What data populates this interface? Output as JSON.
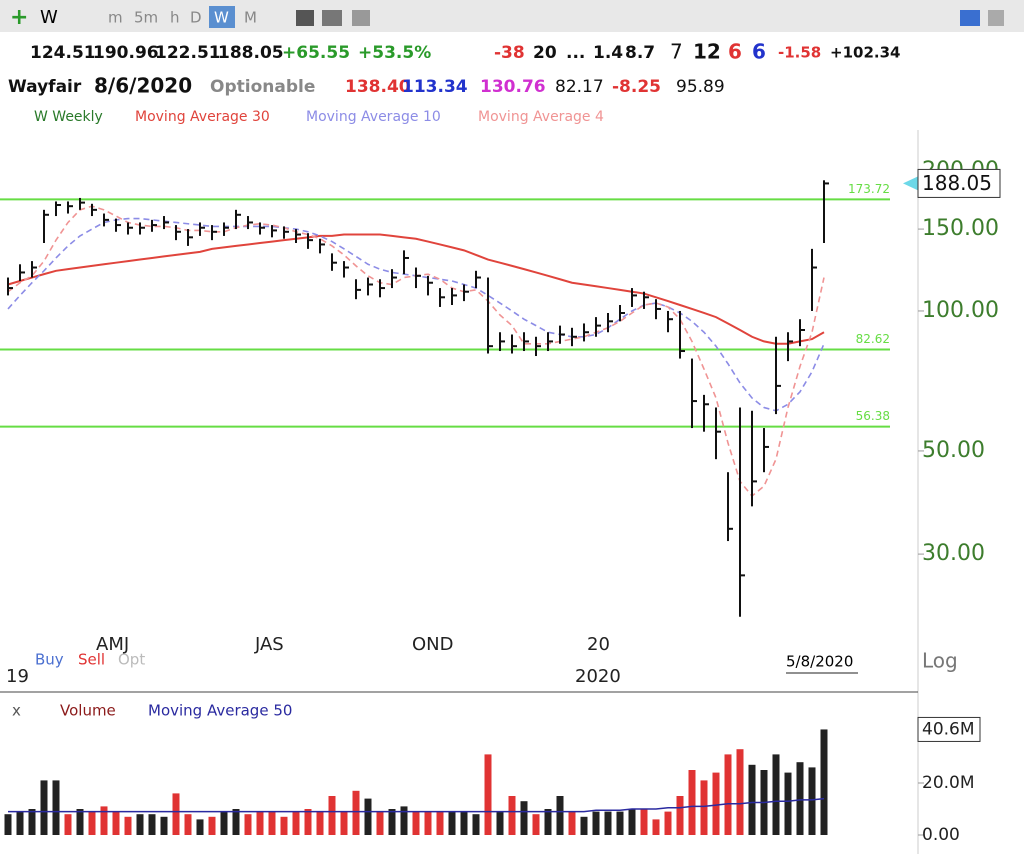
{
  "toolbar": {
    "symbol": "W",
    "intervals": [
      "m",
      "5m",
      "h",
      "D",
      "W",
      "M"
    ]
  },
  "quote": {
    "line1": [
      "124.51",
      "190.96",
      "122.51",
      "188.05",
      "+65.55",
      "+53.5%",
      "-38",
      "20",
      "...",
      "1.4",
      "8.7",
      "7",
      "12",
      "6",
      "6",
      "-1.58",
      "+102.34"
    ],
    "line2": [
      "Wayfair",
      "8/6/2020",
      "Optionable",
      "138.40",
      "113.34",
      "130.76",
      "82.17",
      "-8.25",
      "95.89"
    ]
  },
  "x_labels": {
    "amj": "AMJ",
    "jas": "JAS",
    "ond": "OND",
    "y20": "20",
    "y2020": "2020",
    "y19": "19",
    "date": "5/8/2020"
  },
  "trade": {
    "buy": "Buy",
    "sell": "Sell",
    "opt": "Opt",
    "log": "Log",
    "x": "x"
  },
  "chart_data": [
    {
      "type": "ohlc",
      "title": "W Weekly",
      "color": "#111111",
      "log_scale": true,
      "high": [
        118,
        126,
        128,
        165,
        172,
        172,
        175,
        170,
        162,
        158,
        155,
        155,
        157,
        160,
        153,
        150,
        155,
        153,
        155,
        165,
        160,
        155,
        153,
        152,
        150,
        147,
        143,
        133,
        128,
        117,
        118,
        117,
        123,
        135,
        124,
        119,
        112,
        112,
        114,
        122,
        118,
        90,
        89,
        90,
        88,
        90,
        93,
        92,
        94,
        97,
        99,
        103,
        112,
        110,
        106,
        100,
        100,
        79,
        66,
        62,
        45,
        62,
        61,
        56,
        88,
        90,
        96,
        136,
        191
      ],
      "low": [
        108,
        116,
        118,
        140,
        160,
        162,
        165,
        160,
        152,
        148,
        146,
        146,
        148,
        150,
        142,
        138,
        145,
        142,
        145,
        150,
        150,
        146,
        144,
        143,
        140,
        136,
        133,
        122,
        118,
        106,
        108,
        107,
        112,
        120,
        112,
        108,
        102,
        103,
        105,
        112,
        81,
        82,
        81,
        82,
        80,
        82,
        85,
        84,
        86,
        88,
        90,
        95,
        102,
        101,
        96,
        90,
        79,
        56,
        55,
        48,
        32,
        22,
        38,
        45,
        60,
        78,
        84,
        100,
        140
      ],
      "close": [
        112,
        121,
        124,
        161,
        169,
        168,
        171,
        165,
        157,
        153,
        151,
        151,
        153,
        155,
        148,
        144,
        151,
        148,
        151,
        161,
        155,
        151,
        149,
        148,
        146,
        142,
        139,
        127,
        124,
        111,
        114,
        112,
        118,
        130,
        119,
        115,
        107,
        108,
        110,
        118,
        84,
        86,
        84,
        86,
        84,
        86,
        89,
        88,
        90,
        93,
        95,
        99,
        108,
        107,
        101,
        96,
        82,
        64,
        63,
        55,
        34,
        27,
        43,
        51,
        69,
        86,
        91,
        124,
        188.05
      ],
      "ylim": [
        20.6,
        245
      ],
      "yticks": [
        {
          "value": 30,
          "label": "30.00"
        },
        {
          "value": 50,
          "label": "50.00"
        },
        {
          "value": 100,
          "label": "100.00"
        },
        {
          "value": 150,
          "label": "150.00"
        },
        {
          "value": 200,
          "label": "200.00"
        }
      ],
      "hlines": [
        {
          "value": 173.72,
          "color": "#66dd44"
        },
        {
          "value": 82.62,
          "color": "#66dd44"
        },
        {
          "value": 56.38,
          "color": "#66dd44"
        }
      ],
      "series": [
        {
          "name": "Moving Average 30",
          "color": "#e0443c",
          "dashed": false,
          "values": [
            114,
            116,
            118,
            120,
            122,
            123,
            124,
            125,
            126,
            127,
            128,
            129,
            130,
            131,
            132,
            133,
            134,
            136,
            137,
            138,
            139,
            140,
            141,
            142,
            143,
            144,
            145,
            145,
            146,
            146,
            146,
            146,
            145,
            144,
            143,
            141,
            139,
            137,
            135,
            132,
            129,
            127,
            125,
            123,
            121,
            119,
            117,
            115,
            114,
            113,
            112,
            111,
            110,
            109,
            107,
            105,
            103,
            101,
            99,
            97,
            94,
            91,
            88,
            86,
            85,
            85,
            86,
            87,
            90
          ]
        },
        {
          "name": "Moving Average 10",
          "color": "#8c8ce6",
          "dashed": true,
          "values": [
            101,
            108,
            115,
            122,
            130,
            138,
            145,
            150,
            155,
            157,
            158,
            158,
            157,
            156,
            155,
            154,
            153,
            152,
            152,
            152,
            152,
            152,
            152,
            151,
            150,
            148,
            145,
            141,
            136,
            131,
            126,
            123,
            121,
            120,
            119,
            118,
            117,
            116,
            114,
            112,
            108,
            104,
            100,
            96,
            93,
            90,
            89,
            88,
            88,
            89,
            92,
            96,
            100,
            103,
            104,
            102,
            99,
            95,
            90,
            84,
            77,
            70,
            65,
            62,
            61,
            63,
            67,
            74,
            85
          ]
        },
        {
          "name": "Moving Average 4",
          "color": "#f09494",
          "dashed": true,
          "values": [
            110,
            115,
            119,
            128,
            142,
            155,
            165,
            168,
            165,
            160,
            155,
            153,
            152,
            152,
            151,
            149,
            149,
            148,
            148,
            151,
            153,
            154,
            153,
            151,
            148,
            146,
            143,
            138,
            132,
            125,
            119,
            115,
            114,
            118,
            119,
            120,
            117,
            112,
            110,
            111,
            105,
            98,
            93,
            85,
            85,
            85,
            86,
            87,
            88,
            90,
            92,
            95,
            99,
            103,
            104,
            102,
            96,
            86,
            75,
            65,
            52,
            43,
            40,
            42,
            48,
            62,
            76,
            90,
            118
          ]
        }
      ]
    },
    {
      "type": "bar",
      "title": "Volume",
      "up_color": "#222222",
      "down_color": "#e03333",
      "values": [
        8,
        9,
        10,
        21,
        21,
        8,
        10,
        9,
        11,
        9,
        7,
        8,
        8,
        7,
        16,
        8,
        6,
        7,
        9,
        10,
        8,
        9,
        9,
        7,
        9,
        10,
        9,
        15,
        9,
        17,
        14,
        9,
        10,
        11,
        9,
        9,
        9,
        9,
        9,
        8,
        31,
        9,
        15,
        13,
        8,
        10,
        15,
        9,
        7,
        9,
        9,
        9,
        10,
        10,
        6,
        9,
        15,
        25,
        21,
        24,
        31,
        33,
        27,
        25,
        31,
        24,
        28,
        26,
        40.6
      ],
      "ylim": [
        0,
        50
      ],
      "yticks": [
        {
          "value": 0,
          "label": "0.00"
        },
        {
          "value": 20,
          "label": "20.0M"
        },
        {
          "value": 40.6,
          "label": "40.6M"
        }
      ],
      "series": [
        {
          "name": "Moving Average 50",
          "color": "#2a2aa0",
          "values": [
            9,
            9,
            9,
            9,
            9,
            9,
            9,
            9,
            9,
            9,
            9,
            9,
            9,
            9,
            9,
            9,
            9,
            9,
            9,
            9,
            9,
            9,
            9,
            9,
            9,
            9,
            9,
            9,
            9,
            9,
            9,
            9,
            9,
            9,
            9,
            9,
            9,
            9,
            9,
            9,
            9,
            9,
            9,
            9,
            9,
            9,
            9,
            9,
            9,
            9.5,
            9.5,
            9.5,
            10,
            10,
            10,
            10.5,
            10.5,
            11,
            11,
            11.5,
            12,
            12,
            12.5,
            12.5,
            13,
            13,
            13.5,
            13.5,
            14
          ]
        }
      ]
    }
  ]
}
